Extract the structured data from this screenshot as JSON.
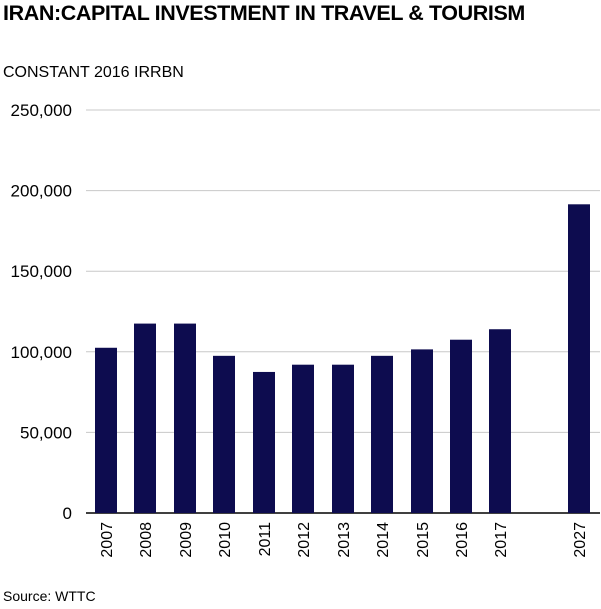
{
  "chart_data": {
    "type": "bar",
    "title": "IRAN:CAPITAL INVESTMENT IN TRAVEL & TOURISM",
    "subtitle": "CONSTANT 2016 IRRBN",
    "source": "Source: WTTC",
    "categories": [
      "2007",
      "2008",
      "2009",
      "2010",
      "2011",
      "2012",
      "2013",
      "2014",
      "2015",
      "2016",
      "2017",
      "2027"
    ],
    "values": [
      102500,
      117500,
      117500,
      97500,
      87500,
      92000,
      92000,
      97500,
      101500,
      107500,
      114000,
      191500
    ],
    "ylim": [
      0,
      250000
    ],
    "yticks": [
      0,
      50000,
      100000,
      150000,
      200000,
      250000
    ],
    "ytick_labels": [
      "0",
      "50,000",
      "100,000",
      "150,000",
      "200,000",
      "250,000"
    ],
    "grid": true,
    "bar_color": "#0d0c4f",
    "grid_color": "#c8c8c8"
  }
}
